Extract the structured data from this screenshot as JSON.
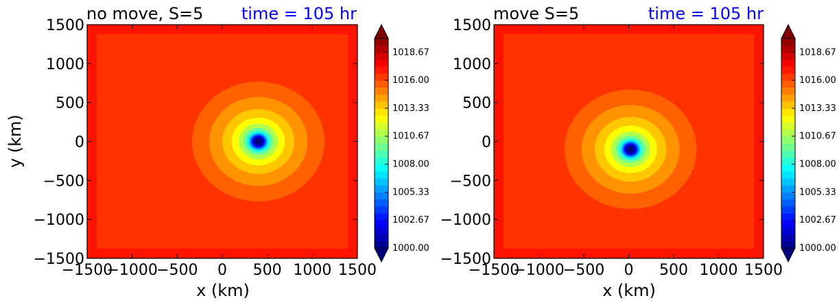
{
  "chart_data": [
    {
      "type": "heatmap",
      "title": "no move, S=5",
      "time_label": "time = 105 hr",
      "time_label_color": "#0000ff",
      "xlabel": "x (km)",
      "ylabel": "y (km)",
      "xlim": [
        -1500,
        1500
      ],
      "ylim": [
        -1500,
        1500
      ],
      "xticks": [
        -1500,
        -1000,
        -500,
        0,
        500,
        1000,
        1500
      ],
      "yticks": [
        -1500,
        -1000,
        -500,
        0,
        500,
        1000,
        1500
      ],
      "xtick_labels": [
        "−1500",
        "−1000",
        "−500",
        "0",
        "500",
        "1000",
        "1500"
      ],
      "ytick_labels": [
        "−1500",
        "−1000",
        "−500",
        "0",
        "500",
        "1000",
        "1500"
      ],
      "center": [
        400,
        0
      ],
      "core_radius_km": 80,
      "minimum_value": 1000.0,
      "background_value": 1016.5,
      "colorbar": {
        "min": 1000.0,
        "max": 1020.0,
        "tick_values": [
          1000.0,
          1002.67,
          1005.33,
          1008.0,
          1010.67,
          1013.33,
          1016.0,
          1018.67
        ],
        "tick_labels": [
          "1000.00",
          "1002.67",
          "1005.33",
          "1008.00",
          "1010.67",
          "1013.33",
          "1016.00",
          "1018.67"
        ],
        "extend": "both"
      }
    },
    {
      "type": "heatmap",
      "title": "move S=5",
      "time_label": "time = 105 hr",
      "time_label_color": "#0000ff",
      "xlabel": "x (km)",
      "ylabel": "",
      "xlim": [
        -1500,
        1500
      ],
      "ylim": [
        -1500,
        1500
      ],
      "xticks": [
        -1500,
        -1000,
        -500,
        0,
        500,
        1000,
        1500
      ],
      "yticks": [
        -1500,
        -1000,
        -500,
        0,
        500,
        1000,
        1500
      ],
      "xtick_labels": [
        "−1500",
        "−1000",
        "−500",
        "0",
        "500",
        "1000",
        "1500"
      ],
      "ytick_labels": [
        "−1500",
        "−1000",
        "−500",
        "0",
        "500",
        "1000",
        "1500"
      ],
      "center": [
        20,
        -100
      ],
      "core_radius_km": 70,
      "minimum_value": 1000.0,
      "background_value": 1016.5,
      "colorbar": {
        "min": 1000.0,
        "max": 1020.0,
        "tick_values": [
          1000.0,
          1002.67,
          1005.33,
          1008.0,
          1010.67,
          1013.33,
          1016.0,
          1018.67
        ],
        "tick_labels": [
          "1000.00",
          "1002.67",
          "1005.33",
          "1008.00",
          "1010.67",
          "1013.33",
          "1016.00",
          "1018.67"
        ],
        "extend": "both"
      }
    }
  ],
  "colors": {
    "jet_stops": [
      "#00007f",
      "#0000ff",
      "#007fff",
      "#00ffff",
      "#7fff7f",
      "#ffff00",
      "#ff7f00",
      "#ff0000",
      "#7f0000"
    ]
  }
}
